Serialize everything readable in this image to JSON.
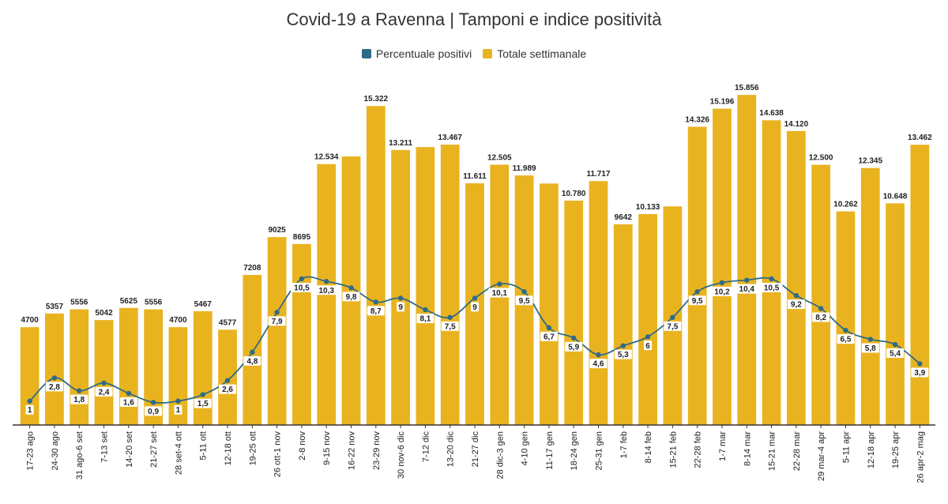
{
  "chart_data": {
    "type": "bar",
    "title": "Covid-19 a Ravenna | Tamponi e indice positività",
    "legend_position": "top-center",
    "colors": {
      "bar": "#E9B320",
      "line": "#2E6B86",
      "point_label_bg": "#ffffff"
    },
    "categories": [
      "17-23 ago",
      "24-30 ago",
      "31 ago-6 set",
      "7-13 set",
      "14-20 set",
      "21-27 set",
      "28 set-4 ott",
      "5-11 ott",
      "12-18 ott",
      "19-25 ott",
      "26 ott-1 nov",
      "2-8 nov",
      "9-15 nov",
      "16-22 nov",
      "23-29 nov",
      "30 nov-6 dic",
      "7-12 dic",
      "13-20 dic",
      "21-27 dic",
      "28 dic-3 gen",
      "4-10 gen",
      "11-17 gen",
      "18-24 gen",
      "25-31 gen",
      "1-7 feb",
      "8-14 feb",
      "15-21 feb",
      "22-28 feb",
      "1-7 mar",
      "8-14 mar",
      "15-21 mar",
      "22-28 mar",
      "29 mar-4 apr",
      "5-11 apr",
      "12-18 apr",
      "19-25 apr",
      "26 apr-2 mag"
    ],
    "series": [
      {
        "name": "Totale settimanale",
        "type": "bar",
        "values": [
          4700,
          5357,
          5556,
          5042,
          5625,
          5556,
          4700,
          5467,
          4577,
          7208,
          9025,
          8695,
          12534,
          12900,
          15322,
          13211,
          13350,
          13467,
          11611,
          12505,
          11989,
          11600,
          10780,
          11717,
          9642,
          10133,
          10500,
          14326,
          15196,
          15856,
          14638,
          14120,
          12500,
          10262,
          12345,
          10648,
          13462
        ],
        "labels": [
          "4700",
          "5357",
          "5556",
          "5042",
          "5625",
          "5556",
          "4700",
          "5467",
          "4577",
          "7208",
          "9025",
          "8695",
          "12.534",
          "",
          "15.322",
          "13.211",
          "",
          "13.467",
          "11.611",
          "12.505",
          "11.989",
          "",
          "10.780",
          "11.717",
          "9642",
          "10.133",
          "",
          "14.326",
          "15.196",
          "15.856",
          "14.638",
          "14.120",
          "12.500",
          "10.262",
          "12.345",
          "10.648",
          "13.462"
        ]
      },
      {
        "name": "Percentuale positivi",
        "type": "line",
        "values": [
          1,
          2.8,
          1.8,
          2.4,
          1.6,
          0.9,
          1,
          1.5,
          2.6,
          4.8,
          7.9,
          10.5,
          10.3,
          9.8,
          8.7,
          9,
          8.1,
          7.5,
          9,
          10.1,
          9.5,
          6.7,
          5.9,
          4.6,
          5.3,
          6,
          7.5,
          9.5,
          10.2,
          10.4,
          10.5,
          9.2,
          8.2,
          6.5,
          5.8,
          5.4,
          3.9
        ],
        "labels": [
          "1",
          "2,8",
          "1,8",
          "2,4",
          "1,6",
          "0,9",
          "1",
          "1,5",
          "2,6",
          "4,8",
          "7,9",
          "10,5",
          "10,3",
          "9,8",
          "8,7",
          "9",
          "8,1",
          "7,5",
          "9",
          "10,1",
          "9,5",
          "6,7",
          "5,9",
          "4,6",
          "5,3",
          "6",
          "7,5",
          "9,5",
          "10,2",
          "10,4",
          "10,5",
          "9,2",
          "8,2",
          "6,5",
          "5,8",
          "5,4",
          "3,9"
        ]
      }
    ],
    "bar_ylim": [
      0,
      17000
    ],
    "line_ylim": [
      0,
      15
    ],
    "grid": false
  }
}
